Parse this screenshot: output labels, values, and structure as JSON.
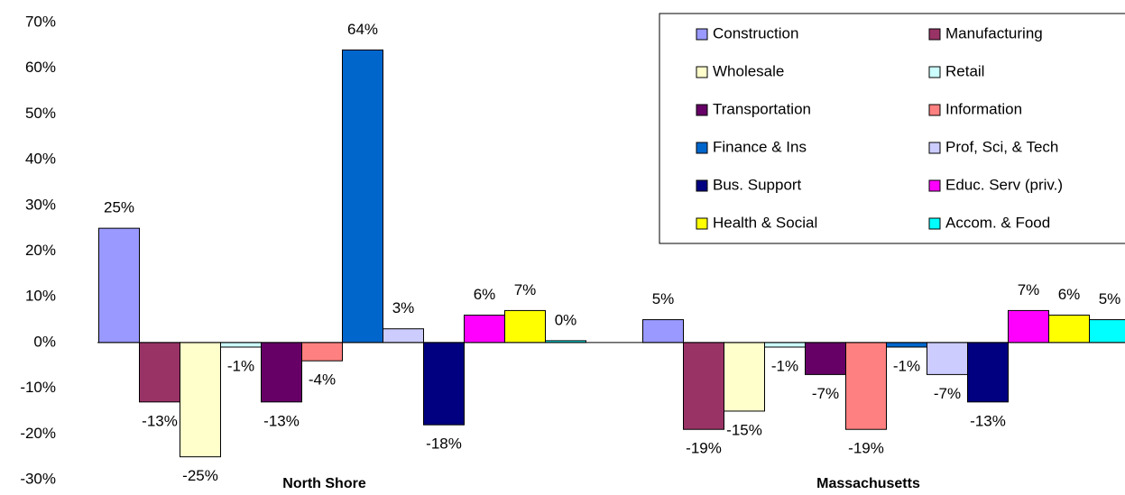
{
  "chart_data": {
    "type": "bar",
    "categories": [
      "North Shore",
      "Massachusetts"
    ],
    "series": [
      {
        "name": "Construction",
        "color": "#9999ff",
        "values": [
          25,
          5
        ],
        "value_labels": [
          "25%",
          "5%"
        ]
      },
      {
        "name": "Manufacturing",
        "color": "#993366",
        "values": [
          -13,
          -19
        ],
        "value_labels": [
          "-13%",
          "-19%"
        ]
      },
      {
        "name": "Wholesale",
        "color": "#ffffcc",
        "values": [
          -25,
          -15
        ],
        "value_labels": [
          "-25%",
          "-15%"
        ]
      },
      {
        "name": "Retail",
        "color": "#ccffff",
        "values": [
          -1,
          -1
        ],
        "value_labels": [
          "-1%",
          "-1%"
        ]
      },
      {
        "name": "Transportation",
        "color": "#660066",
        "values": [
          -13,
          -7
        ],
        "value_labels": [
          "-13%",
          "-7%"
        ]
      },
      {
        "name": "Information",
        "color": "#ff8080",
        "values": [
          -4,
          -19
        ],
        "value_labels": [
          "-4%",
          "-19%"
        ]
      },
      {
        "name": "Finance & Ins",
        "color": "#0066cc",
        "values": [
          64,
          -1
        ],
        "value_labels": [
          "64%",
          "-1%"
        ]
      },
      {
        "name": "Prof, Sci, & Tech",
        "color": "#ccccff",
        "values": [
          3,
          -7
        ],
        "value_labels": [
          "3%",
          "-7%"
        ]
      },
      {
        "name": "Bus. Support",
        "color": "#000080",
        "values": [
          -18,
          -13
        ],
        "value_labels": [
          "-18%",
          "-13%"
        ]
      },
      {
        "name": "Educ. Serv (priv.)",
        "color": "#ff00ff",
        "values": [
          6,
          7
        ],
        "value_labels": [
          "6%",
          "7%"
        ]
      },
      {
        "name": "Health & Social",
        "color": "#ffff00",
        "values": [
          7,
          6
        ],
        "value_labels": [
          "7%",
          "6%"
        ]
      },
      {
        "name": "Accom. & Food",
        "color": "#00ffff",
        "values": [
          0.4,
          5
        ],
        "value_labels": [
          "0%",
          "5%"
        ]
      }
    ],
    "ylim": [
      -30,
      70
    ],
    "yticks": [
      {
        "value": -30,
        "label": "-30%"
      },
      {
        "value": -20,
        "label": "-20%"
      },
      {
        "value": -10,
        "label": "-10%"
      },
      {
        "value": 0,
        "label": "0%"
      },
      {
        "value": 10,
        "label": "10%"
      },
      {
        "value": 20,
        "label": "20%"
      },
      {
        "value": 30,
        "label": "30%"
      },
      {
        "value": 40,
        "label": "40%"
      },
      {
        "value": 50,
        "label": "50%"
      },
      {
        "value": 60,
        "label": "60%"
      },
      {
        "value": 70,
        "label": "70%"
      }
    ],
    "legend": "top-right"
  }
}
